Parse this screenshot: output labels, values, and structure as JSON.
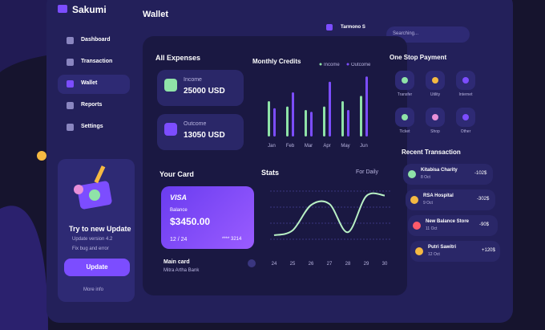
{
  "brand": "Sakumi",
  "menu": [
    "Dashboard",
    "Transaction",
    "Wallet",
    "Reports",
    "Settings"
  ],
  "update_card": {
    "title": "Try to new Update",
    "items": [
      "Update version 4.2",
      "Fix bug and error"
    ],
    "button": "Update",
    "more": "More info"
  },
  "header": {
    "title": "Wallet",
    "user": "Tarmono S",
    "search": "Searching..."
  },
  "expenses": {
    "title": "All Expenses",
    "income_label": "Income",
    "income": "25000 USD",
    "outcome_label": "Outcome",
    "outcome": "13050 USD"
  },
  "monthly_credits": {
    "title": "Monthly Credits",
    "categories": [
      "Jan",
      "Feb",
      "Mar",
      "Apr",
      "May",
      "Jun"
    ],
    "series": [
      {
        "name": "Income",
        "color": "#8fe3a8",
        "values": [
          40,
          34,
          30,
          34,
          40,
          46
        ]
      },
      {
        "name": "Outcome",
        "color": "#7c4dff",
        "values": [
          32,
          50,
          28,
          62,
          30,
          68
        ]
      }
    ]
  },
  "card": {
    "title": "Your Card",
    "brand": "VISA",
    "balance_label": "Balance",
    "balance": "$3450.00",
    "expiry": "12 / 24",
    "number": "**** 3214",
    "name": "Main card",
    "bank": "Mitra Artha Bank"
  },
  "stats": {
    "title": "Stats",
    "period": "For Daily",
    "x": [
      "24",
      "25",
      "26",
      "27",
      "28",
      "29",
      "30"
    ],
    "values": [
      20,
      28,
      70,
      72,
      25,
      85,
      86
    ],
    "color": "#b8f0c4"
  },
  "payment": {
    "title": "One Stop Payment",
    "items": [
      "Transfer",
      "Utility",
      "Internet",
      "Ticket",
      "Shop",
      "Other"
    ]
  },
  "recent": {
    "title": "Recent Transaction",
    "rows": [
      {
        "name": "Kitabisa Charity",
        "date": "8 Oct",
        "amount": "-102$"
      },
      {
        "name": "RSA Hospital",
        "date": "9 Oct",
        "amount": "-302$"
      },
      {
        "name": "New Balance Store",
        "date": "11 Oct",
        "amount": "-90$"
      },
      {
        "name": "Putri Sawitri",
        "date": "12 Oct",
        "amount": "+120$"
      }
    ]
  }
}
